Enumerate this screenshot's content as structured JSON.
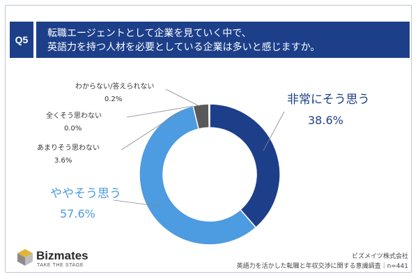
{
  "question": {
    "number": "Q5",
    "line1": "転職エージェントとして企業を見ていく中で、",
    "line2": "英語力を持つ人材を必要としている企業は多いと感じますか。"
  },
  "chart_data": {
    "type": "pie",
    "donut": true,
    "categories": [
      "非常にそう思う",
      "ややそう思う",
      "あまりそう思わない",
      "全くそう思わない",
      "わからない/答えられない"
    ],
    "values": [
      38.6,
      57.6,
      3.6,
      0.0,
      0.2
    ],
    "value_labels": [
      "38.6%",
      "57.6%",
      "3.6%",
      "0.0%",
      "0.2%"
    ],
    "colors": [
      "#1d3f8a",
      "#4d9be0",
      "#595959",
      "#a6a6a6",
      "#d9d9d9"
    ]
  },
  "brand": {
    "name": "Bizmates",
    "tagline": "TAKE THE STAGE"
  },
  "footer": {
    "company": "ビズメイツ株式会社",
    "survey": "英語力を活かした転職と年収交渉に関する意識調査｜n=441"
  }
}
